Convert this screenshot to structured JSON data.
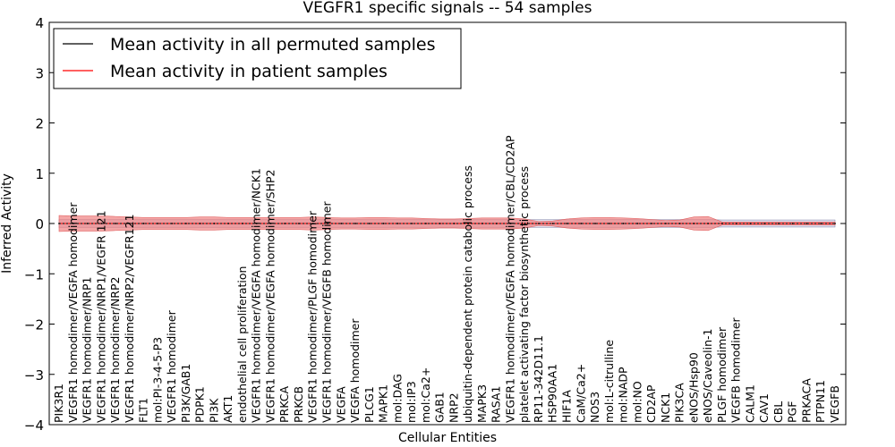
{
  "chart_data": {
    "type": "line",
    "title": "VEGFR1 specific signals -- 54 samples",
    "xlabel": "Cellular Entities",
    "ylabel": "Inferred Activity",
    "ylim": [
      -4,
      4
    ],
    "yticks": [
      -4,
      -3,
      -2,
      -1,
      0,
      1,
      2,
      3,
      4
    ],
    "grid": false,
    "legend_position": "top-left",
    "categories": [
      "PIK3R1",
      "VEGFR1 homodimer/VEGFA homodimer",
      "VEGFR1 homodimer/NRP1",
      "VEGFR1 homodimer/NRP1/VEGFR 121",
      "VEGFR1 homodimer/NRP2",
      "VEGFR1 homodimer/NRP2/VEGFR121",
      "FLT1",
      "mol:PI-3-4-5-P3",
      "VEGFR1 homodimer",
      "PI3K/GAB1",
      "PDPK1",
      "PI3K",
      "AKT1",
      "endothelial cell proliferation",
      "VEGFR1 homodimer/VEGFA homodimer/NCK1",
      "VEGFR1 homodimer/VEGFA homodimer/SHP2",
      "PRKCA",
      "PRKCB",
      "VEGFR1 homodimer/PLGF homodimer",
      "VEGFR1 homodimer/VEGFB homodimer",
      "VEGFA",
      "VEGFA homodimer",
      "PLCG1",
      "MAPK1",
      "mol:DAG",
      "mol:IP3",
      "mol:Ca2+",
      "GAB1",
      "NRP2",
      "ubiquitin-dependent protein catabolic process",
      "MAPK3",
      "RASA1",
      "VEGFR1 homodimer/VEGFA homodimer/CBL/CD2AP",
      "platelet activating factor biosynthetic process",
      "RP11-342D11.1",
      "HSP90AA1",
      "HIF1A",
      "CaM/Ca2+",
      "NOS3",
      "mol:L-citrulline",
      "mol:NADP",
      "mol:NO",
      "CD2AP",
      "NCK1",
      "PIK3CA",
      "eNOS/Hsp90",
      "eNOS/Caveolin-1",
      "PLGF homodimer",
      "VEGFB homodimer",
      "CALM1",
      "CAV1",
      "CBL",
      "PGF",
      "PRKACA",
      "PTPN11",
      "VEGFB"
    ],
    "series": [
      {
        "name": "Mean activity in all permuted samples",
        "color": "#000000",
        "values": [
          0,
          0,
          0,
          0,
          0,
          0,
          0,
          0,
          0,
          0,
          0,
          0,
          0,
          0,
          0,
          0,
          0,
          0,
          0,
          0,
          0,
          0,
          0,
          0,
          0,
          0,
          0,
          0,
          0,
          0,
          0,
          0,
          0,
          0,
          0,
          0,
          0,
          0,
          0,
          0,
          0,
          0,
          0,
          0,
          0,
          0,
          0,
          0,
          0,
          0,
          0,
          0,
          0,
          0,
          0,
          0
        ]
      },
      {
        "name": "Mean activity in patient samples",
        "color": "#ff0000",
        "values": [
          0,
          0,
          0,
          0,
          0,
          0,
          0,
          0,
          0,
          0,
          0,
          0,
          0,
          0,
          0,
          0,
          0,
          0,
          0,
          0,
          0,
          0,
          0,
          0,
          0,
          0,
          0,
          0,
          0,
          0,
          0,
          0,
          0,
          0,
          0,
          0,
          0,
          0,
          0,
          0,
          0,
          0,
          0,
          0,
          0,
          0,
          0,
          0,
          0,
          0,
          0,
          0,
          0,
          0,
          0,
          0
        ],
        "band_halfwidth": [
          0.16,
          0.15,
          0.15,
          0.15,
          0.14,
          0.13,
          0.12,
          0.12,
          0.12,
          0.12,
          0.13,
          0.13,
          0.12,
          0.12,
          0.12,
          0.12,
          0.12,
          0.12,
          0.13,
          0.12,
          0.11,
          0.11,
          0.12,
          0.12,
          0.11,
          0.11,
          0.1,
          0.09,
          0.09,
          0.1,
          0.11,
          0.11,
          0.11,
          0.09,
          0.04,
          0.05,
          0.09,
          0.11,
          0.12,
          0.12,
          0.11,
          0.1,
          0.08,
          0.06,
          0.07,
          0.13,
          0.14,
          0.03,
          0.03,
          0.03,
          0.03,
          0.03,
          0.03,
          0.03,
          0.03,
          0.03
        ]
      }
    ],
    "permuted_band_halfwidth": [
      0.08,
      0.08,
      0.08,
      0.08,
      0.08,
      0.08,
      0.08,
      0.08,
      0.08,
      0.08,
      0.08,
      0.08,
      0.08,
      0.08,
      0.08,
      0.08,
      0.08,
      0.08,
      0.08,
      0.08,
      0.08,
      0.08,
      0.08,
      0.08,
      0.08,
      0.08,
      0.08,
      0.08,
      0.08,
      0.08,
      0.08,
      0.08,
      0.08,
      0.08,
      0.08,
      0.08,
      0.08,
      0.08,
      0.08,
      0.08,
      0.08,
      0.08,
      0.08,
      0.08,
      0.08,
      0.08,
      0.08,
      0.07,
      0.07,
      0.07,
      0.07,
      0.07,
      0.07,
      0.07,
      0.07,
      0.07
    ],
    "colors": {
      "patient_band": "#f08080",
      "permuted_band": "#c8c8e0"
    }
  }
}
